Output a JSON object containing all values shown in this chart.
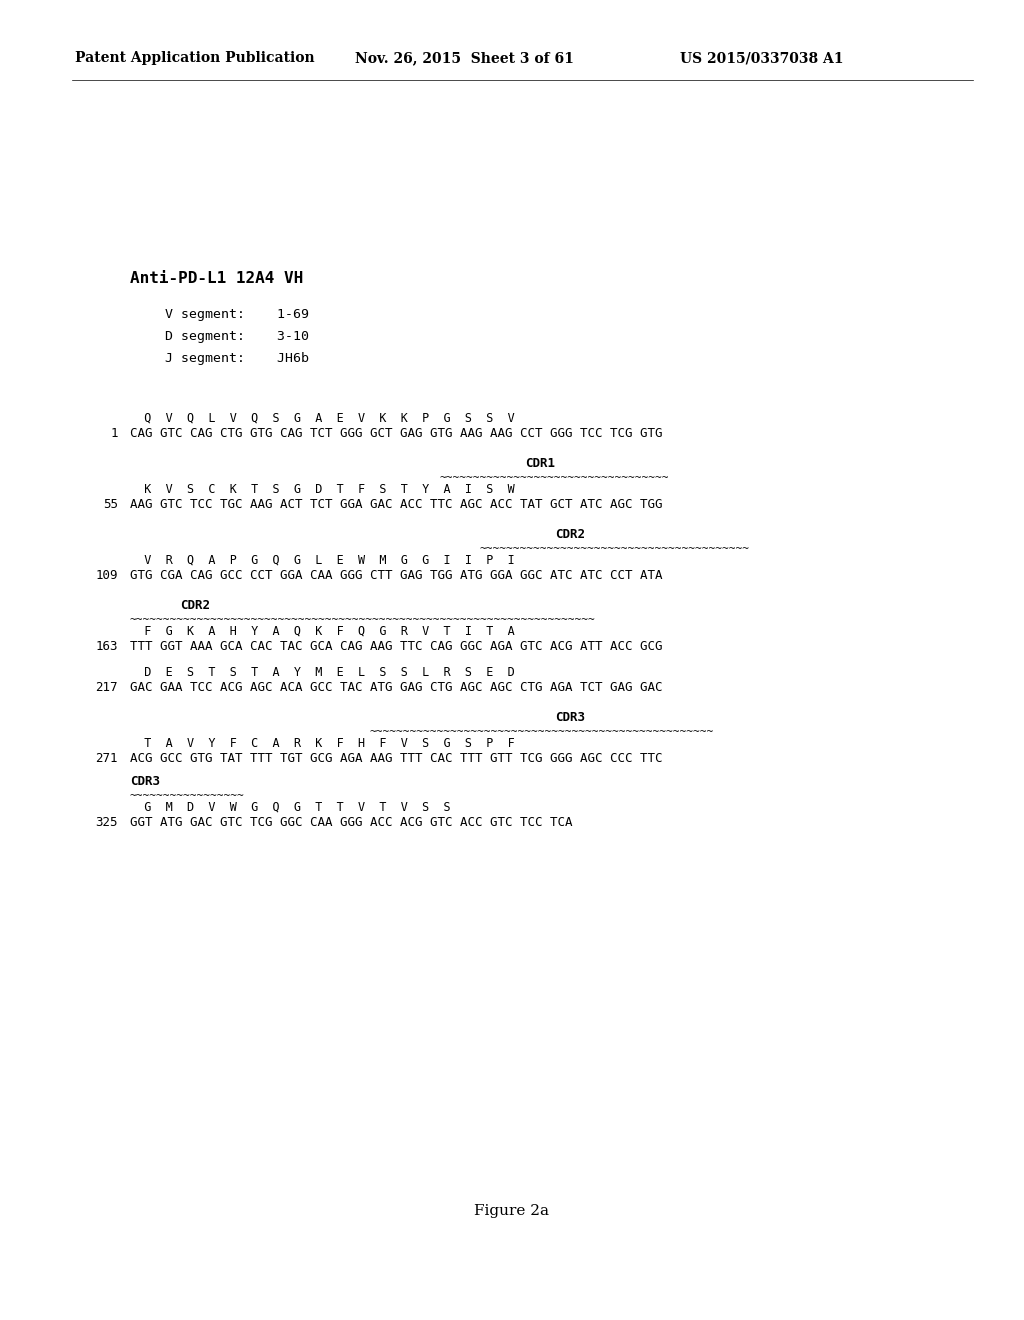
{
  "header_left": "Patent Application Publication",
  "header_mid": "Nov. 26, 2015  Sheet 3 of 61",
  "header_right": "US 2015/0337038 A1",
  "title": "Anti-PD-L1 12A4 VH",
  "seg1": "V segment:    1-69",
  "seg2": "D segment:    3-10",
  "seg3": "J segment:    JH6b",
  "figure_label": "Figure 2a",
  "mono_size": 9.0,
  "aa_size": 8.5,
  "background": "#ffffff"
}
